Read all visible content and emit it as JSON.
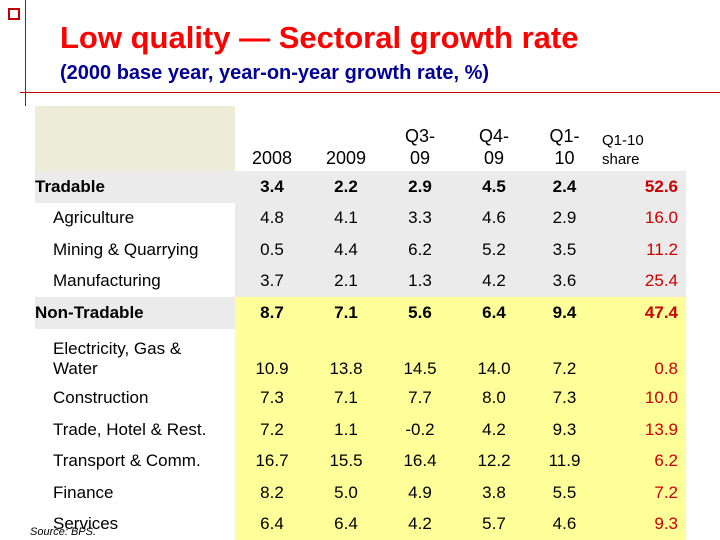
{
  "title": "Low quality — Sectoral growth rate",
  "subtitle": "(2000 base year, year-on-year growth rate, %)",
  "table": {
    "headers": [
      "",
      "2008",
      "2009",
      "Q3-\n09",
      "Q4-\n09",
      "Q1-\n10",
      "Q1-10\nshare"
    ],
    "rows": [
      {
        "label": "Tradable",
        "values": [
          "3.4",
          "2.2",
          "2.9",
          "4.5",
          "2.4",
          "52.6"
        ]
      },
      {
        "label": "Agriculture",
        "values": [
          "4.8",
          "4.1",
          "3.3",
          "4.6",
          "2.9",
          "16.0"
        ]
      },
      {
        "label": "Mining & Quarrying",
        "values": [
          "0.5",
          "4.4",
          "6.2",
          "5.2",
          "3.5",
          "11.2"
        ]
      },
      {
        "label": "Manufacturing",
        "values": [
          "3.7",
          "2.1",
          "1.3",
          "4.2",
          "3.6",
          "25.4"
        ]
      },
      {
        "label": "Non-Tradable",
        "values": [
          "8.7",
          "7.1",
          "5.6",
          "6.4",
          "9.4",
          "47.4"
        ]
      },
      {
        "label": "Electricity, Gas &\nWater",
        "values": [
          "10.9",
          "13.8",
          "14.5",
          "14.0",
          "7.2",
          "0.8"
        ]
      },
      {
        "label": "Construction",
        "values": [
          "7.3",
          "7.1",
          "7.7",
          "8.0",
          "7.3",
          "10.0"
        ]
      },
      {
        "label": "Trade, Hotel & Rest.",
        "values": [
          "7.2",
          "1.1",
          "-0.2",
          "4.2",
          "9.3",
          "13.9"
        ]
      },
      {
        "label": "Transport & Comm.",
        "values": [
          "16.7",
          "15.5",
          "16.4",
          "12.2",
          "11.9",
          "6.2"
        ]
      },
      {
        "label": "Finance",
        "values": [
          "8.2",
          "5.0",
          "4.9",
          "3.8",
          "5.5",
          "7.2"
        ]
      },
      {
        "label": "Services",
        "values": [
          "6.4",
          "6.4",
          "4.2",
          "5.7",
          "4.6",
          "9.3"
        ]
      }
    ]
  },
  "source": "Source: BPS.",
  "colors": {
    "title": "#ff0000",
    "subtitle": "#000099",
    "accent_line": "#c00000",
    "share": "#cc0000",
    "grey_fill": "#ebebeb",
    "yellow_fill": "#ffff99"
  }
}
